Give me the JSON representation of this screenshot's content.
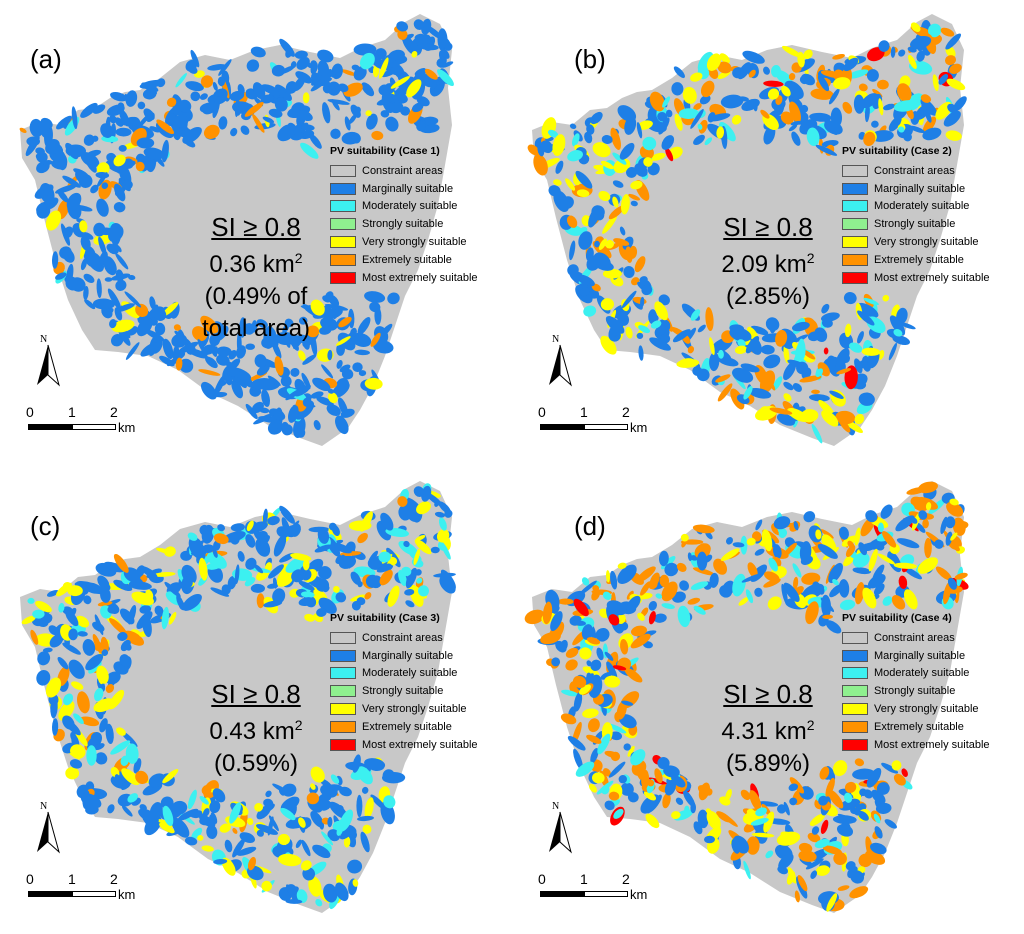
{
  "legend": {
    "items": [
      {
        "label": "Constraint areas",
        "color": "#c8c8c8"
      },
      {
        "label": "Marginally suitable",
        "color": "#1e7fe6"
      },
      {
        "label": "Moderately suitable",
        "color": "#3cf0f0"
      },
      {
        "label": "Strongly suitable",
        "color": "#8ff08f"
      },
      {
        "label": "Very strongly suitable",
        "color": "#ffff00"
      },
      {
        "label": "Extremely suitable",
        "color": "#ff9200"
      },
      {
        "label": "Most extremely suitable",
        "color": "#ff0000"
      }
    ]
  },
  "scale_bar": {
    "ticks": [
      "0",
      "1",
      "2"
    ],
    "unit": "km"
  },
  "north_label": "N",
  "panels": [
    {
      "label": "(a)",
      "legend_title": "PV suitability (Case 1)",
      "si_label": "SI ≥ 0.8",
      "area_value": "0.36 km",
      "area_exp": "2",
      "pct_lines": [
        "(0.49% of",
        "total area)"
      ],
      "mix": {
        "blue": 0.86,
        "cyan": 0.03,
        "yellow": 0.06,
        "orange": 0.05,
        "red": 0.0
      }
    },
    {
      "label": "(b)",
      "legend_title": "PV suitability (Case 2)",
      "si_label": "SI ≥ 0.8",
      "area_value": "2.09 km",
      "area_exp": "2",
      "pct_lines": [
        "(2.85%)"
      ],
      "mix": {
        "blue": 0.45,
        "cyan": 0.12,
        "yellow": 0.23,
        "orange": 0.19,
        "red": 0.01
      }
    },
    {
      "label": "(c)",
      "legend_title": "PV suitability (Case 3)",
      "si_label": "SI ≥ 0.8",
      "area_value": "0.43 km",
      "area_exp": "2",
      "pct_lines": [
        "(0.59%)"
      ],
      "mix": {
        "blue": 0.6,
        "cyan": 0.15,
        "yellow": 0.2,
        "orange": 0.05,
        "red": 0.0
      }
    },
    {
      "label": "(d)",
      "legend_title": "PV suitability (Case 4)",
      "si_label": "SI ≥ 0.8",
      "area_value": "4.31 km",
      "area_exp": "2",
      "pct_lines": [
        "(5.89%)"
      ],
      "mix": {
        "blue": 0.4,
        "cyan": 0.1,
        "yellow": 0.18,
        "orange": 0.27,
        "red": 0.05
      }
    }
  ]
}
